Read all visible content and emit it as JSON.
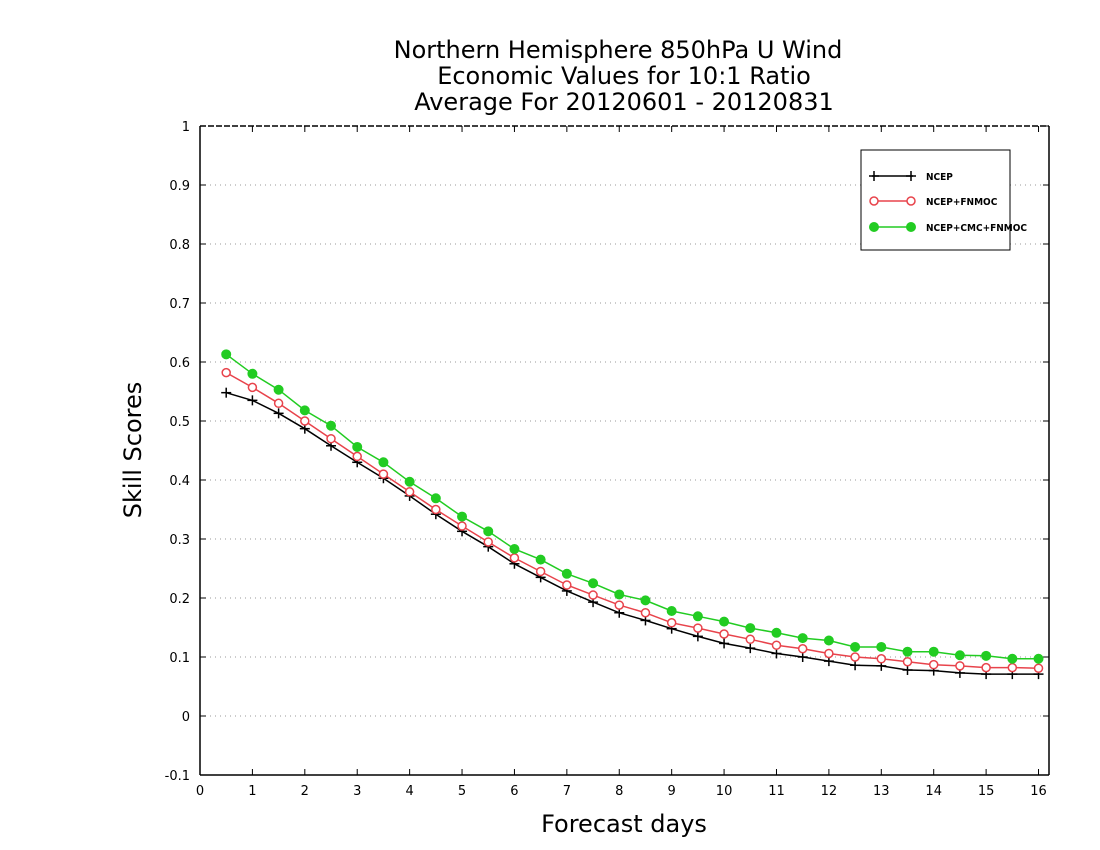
{
  "chart_data": {
    "type": "line",
    "title_lines": [
      "Northern Hemisphere 850hPa U Wind",
      "Economic Values for 10:1 Ratio",
      "Average For 20120601 - 20120831"
    ],
    "xlabel": "Forecast days",
    "ylabel": "Skill Scores",
    "xlim": [
      0,
      16.2
    ],
    "ylim": [
      -0.1,
      1
    ],
    "x_ticks": [
      "0",
      "1",
      "2",
      "3",
      "4",
      "5",
      "6",
      "7",
      "8",
      "9",
      "10",
      "11",
      "12",
      "13",
      "14",
      "15",
      "16"
    ],
    "y_ticks": [
      "-0.1",
      "0",
      "0.1",
      "0.2",
      "0.3",
      "0.4",
      "0.5",
      "0.6",
      "0.7",
      "0.8",
      "0.9",
      "1"
    ],
    "grid": "horizontal dotted",
    "legend_position": "top-right",
    "x": [
      0.5,
      1,
      1.5,
      2,
      2.5,
      3,
      3.5,
      4,
      4.5,
      5,
      5.5,
      6,
      6.5,
      7,
      7.5,
      8,
      8.5,
      9,
      9.5,
      10,
      10.5,
      11,
      11.5,
      12,
      12.5,
      13,
      13.5,
      14,
      14.5,
      15,
      15.5,
      16
    ],
    "series": [
      {
        "name": "NCEP",
        "color": "#000000",
        "marker": "plus",
        "values": [
          0.548,
          0.535,
          0.513,
          0.487,
          0.458,
          0.43,
          0.403,
          0.373,
          0.342,
          0.313,
          0.287,
          0.258,
          0.235,
          0.212,
          0.193,
          0.175,
          0.162,
          0.148,
          0.135,
          0.123,
          0.115,
          0.106,
          0.1,
          0.093,
          0.086,
          0.085,
          0.078,
          0.077,
          0.073,
          0.071,
          0.071,
          0.071
        ]
      },
      {
        "name": "NCEP+FNMOC",
        "color": "#e8434b",
        "marker": "open-circle",
        "values": [
          0.582,
          0.557,
          0.53,
          0.5,
          0.47,
          0.44,
          0.41,
          0.38,
          0.35,
          0.322,
          0.295,
          0.268,
          0.245,
          0.222,
          0.205,
          0.188,
          0.175,
          0.158,
          0.149,
          0.139,
          0.13,
          0.12,
          0.114,
          0.106,
          0.1,
          0.097,
          0.092,
          0.087,
          0.085,
          0.082,
          0.082,
          0.081
        ]
      },
      {
        "name": "NCEP+CMC+FNMOC",
        "color": "#22cc22",
        "marker": "filled-circle",
        "values": [
          0.613,
          0.58,
          0.553,
          0.518,
          0.492,
          0.456,
          0.43,
          0.397,
          0.369,
          0.338,
          0.313,
          0.283,
          0.265,
          0.241,
          0.225,
          0.206,
          0.196,
          0.178,
          0.169,
          0.16,
          0.149,
          0.141,
          0.132,
          0.128,
          0.117,
          0.117,
          0.109,
          0.109,
          0.103,
          0.102,
          0.097,
          0.097
        ]
      }
    ]
  }
}
